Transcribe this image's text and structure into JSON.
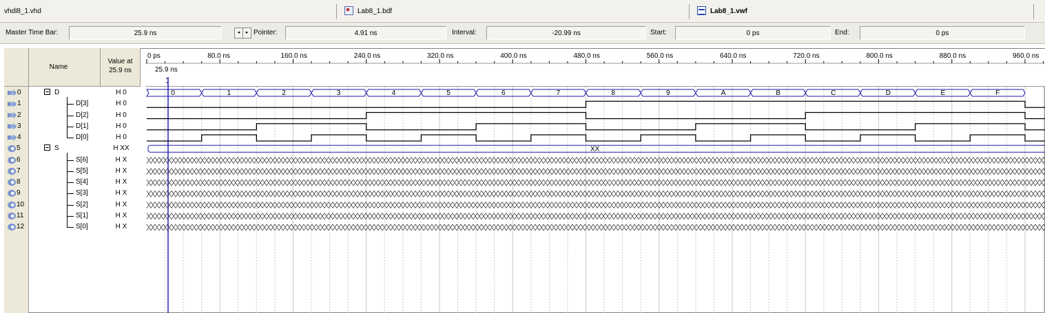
{
  "tabs": [
    {
      "label": "vhdl8_1.vhd",
      "icon": "none"
    },
    {
      "label": "Lab8_1.bdf",
      "icon": "bdf-file-icon"
    },
    {
      "label": "Lab8_1.vwf",
      "icon": "waveform-file-icon",
      "active": true
    }
  ],
  "timebar": {
    "master_label": "Master Time Bar:",
    "master_value": "25.9 ns",
    "pointer_label": "Pointer:",
    "pointer_value": "4.91 ns",
    "interval_label": "Interval:",
    "interval_value": "-20.99 ns",
    "start_label": "Start:",
    "start_value": "0 ps",
    "end_label": "End:",
    "end_value": "0 ps"
  },
  "header": {
    "name_label": "Name",
    "value_label_1": "Value at",
    "value_label_2": "25.9 ns",
    "cursor_label": "25.9 ns",
    "time_ticks": [
      "0 ps",
      "80.0 ns",
      "160.0 ns",
      "240.0 ns",
      "320.0 ns",
      "400.0 ns",
      "480.0 ns",
      "560.0 ns",
      "640.0 ns",
      "720.0 ns",
      "800.0 ns",
      "880.0 ns",
      "960.0 ns"
    ]
  },
  "signals": [
    {
      "index": "0",
      "name": "D",
      "value": "H 0",
      "kind": "bus-in",
      "group": true
    },
    {
      "index": "1",
      "name": "D[3]",
      "value": "H 0",
      "kind": "in"
    },
    {
      "index": "2",
      "name": "D[2]",
      "value": "H 0",
      "kind": "in"
    },
    {
      "index": "3",
      "name": "D[1]",
      "value": "H 0",
      "kind": "in"
    },
    {
      "index": "4",
      "name": "D[0]",
      "value": "H 0",
      "kind": "in"
    },
    {
      "index": "5",
      "name": "S",
      "value": "H XX",
      "kind": "bus-out",
      "group": true
    },
    {
      "index": "6",
      "name": "S[6]",
      "value": "H X",
      "kind": "out"
    },
    {
      "index": "7",
      "name": "S[5]",
      "value": "H X",
      "kind": "out"
    },
    {
      "index": "8",
      "name": "S[4]",
      "value": "H X",
      "kind": "out"
    },
    {
      "index": "9",
      "name": "S[3]",
      "value": "H X",
      "kind": "out"
    },
    {
      "index": "10",
      "name": "S[2]",
      "value": "H X",
      "kind": "out"
    },
    {
      "index": "11",
      "name": "S[1]",
      "value": "H X",
      "kind": "out"
    },
    {
      "index": "12",
      "name": "S[0]",
      "value": "H X",
      "kind": "out"
    }
  ],
  "waveform": {
    "bus_d_values": [
      "0",
      "1",
      "2",
      "3",
      "4",
      "5",
      "6",
      "7",
      "8",
      "9",
      "A",
      "B",
      "C",
      "D",
      "E",
      "F"
    ],
    "bus_s_label": "XX",
    "segment_ns": 60,
    "total_ns": 1000
  },
  "colors": {
    "bus_outline": "#1a1aa8",
    "signal": "#000000",
    "cursor": "#2020c0",
    "grid": "#c8c8c8"
  }
}
